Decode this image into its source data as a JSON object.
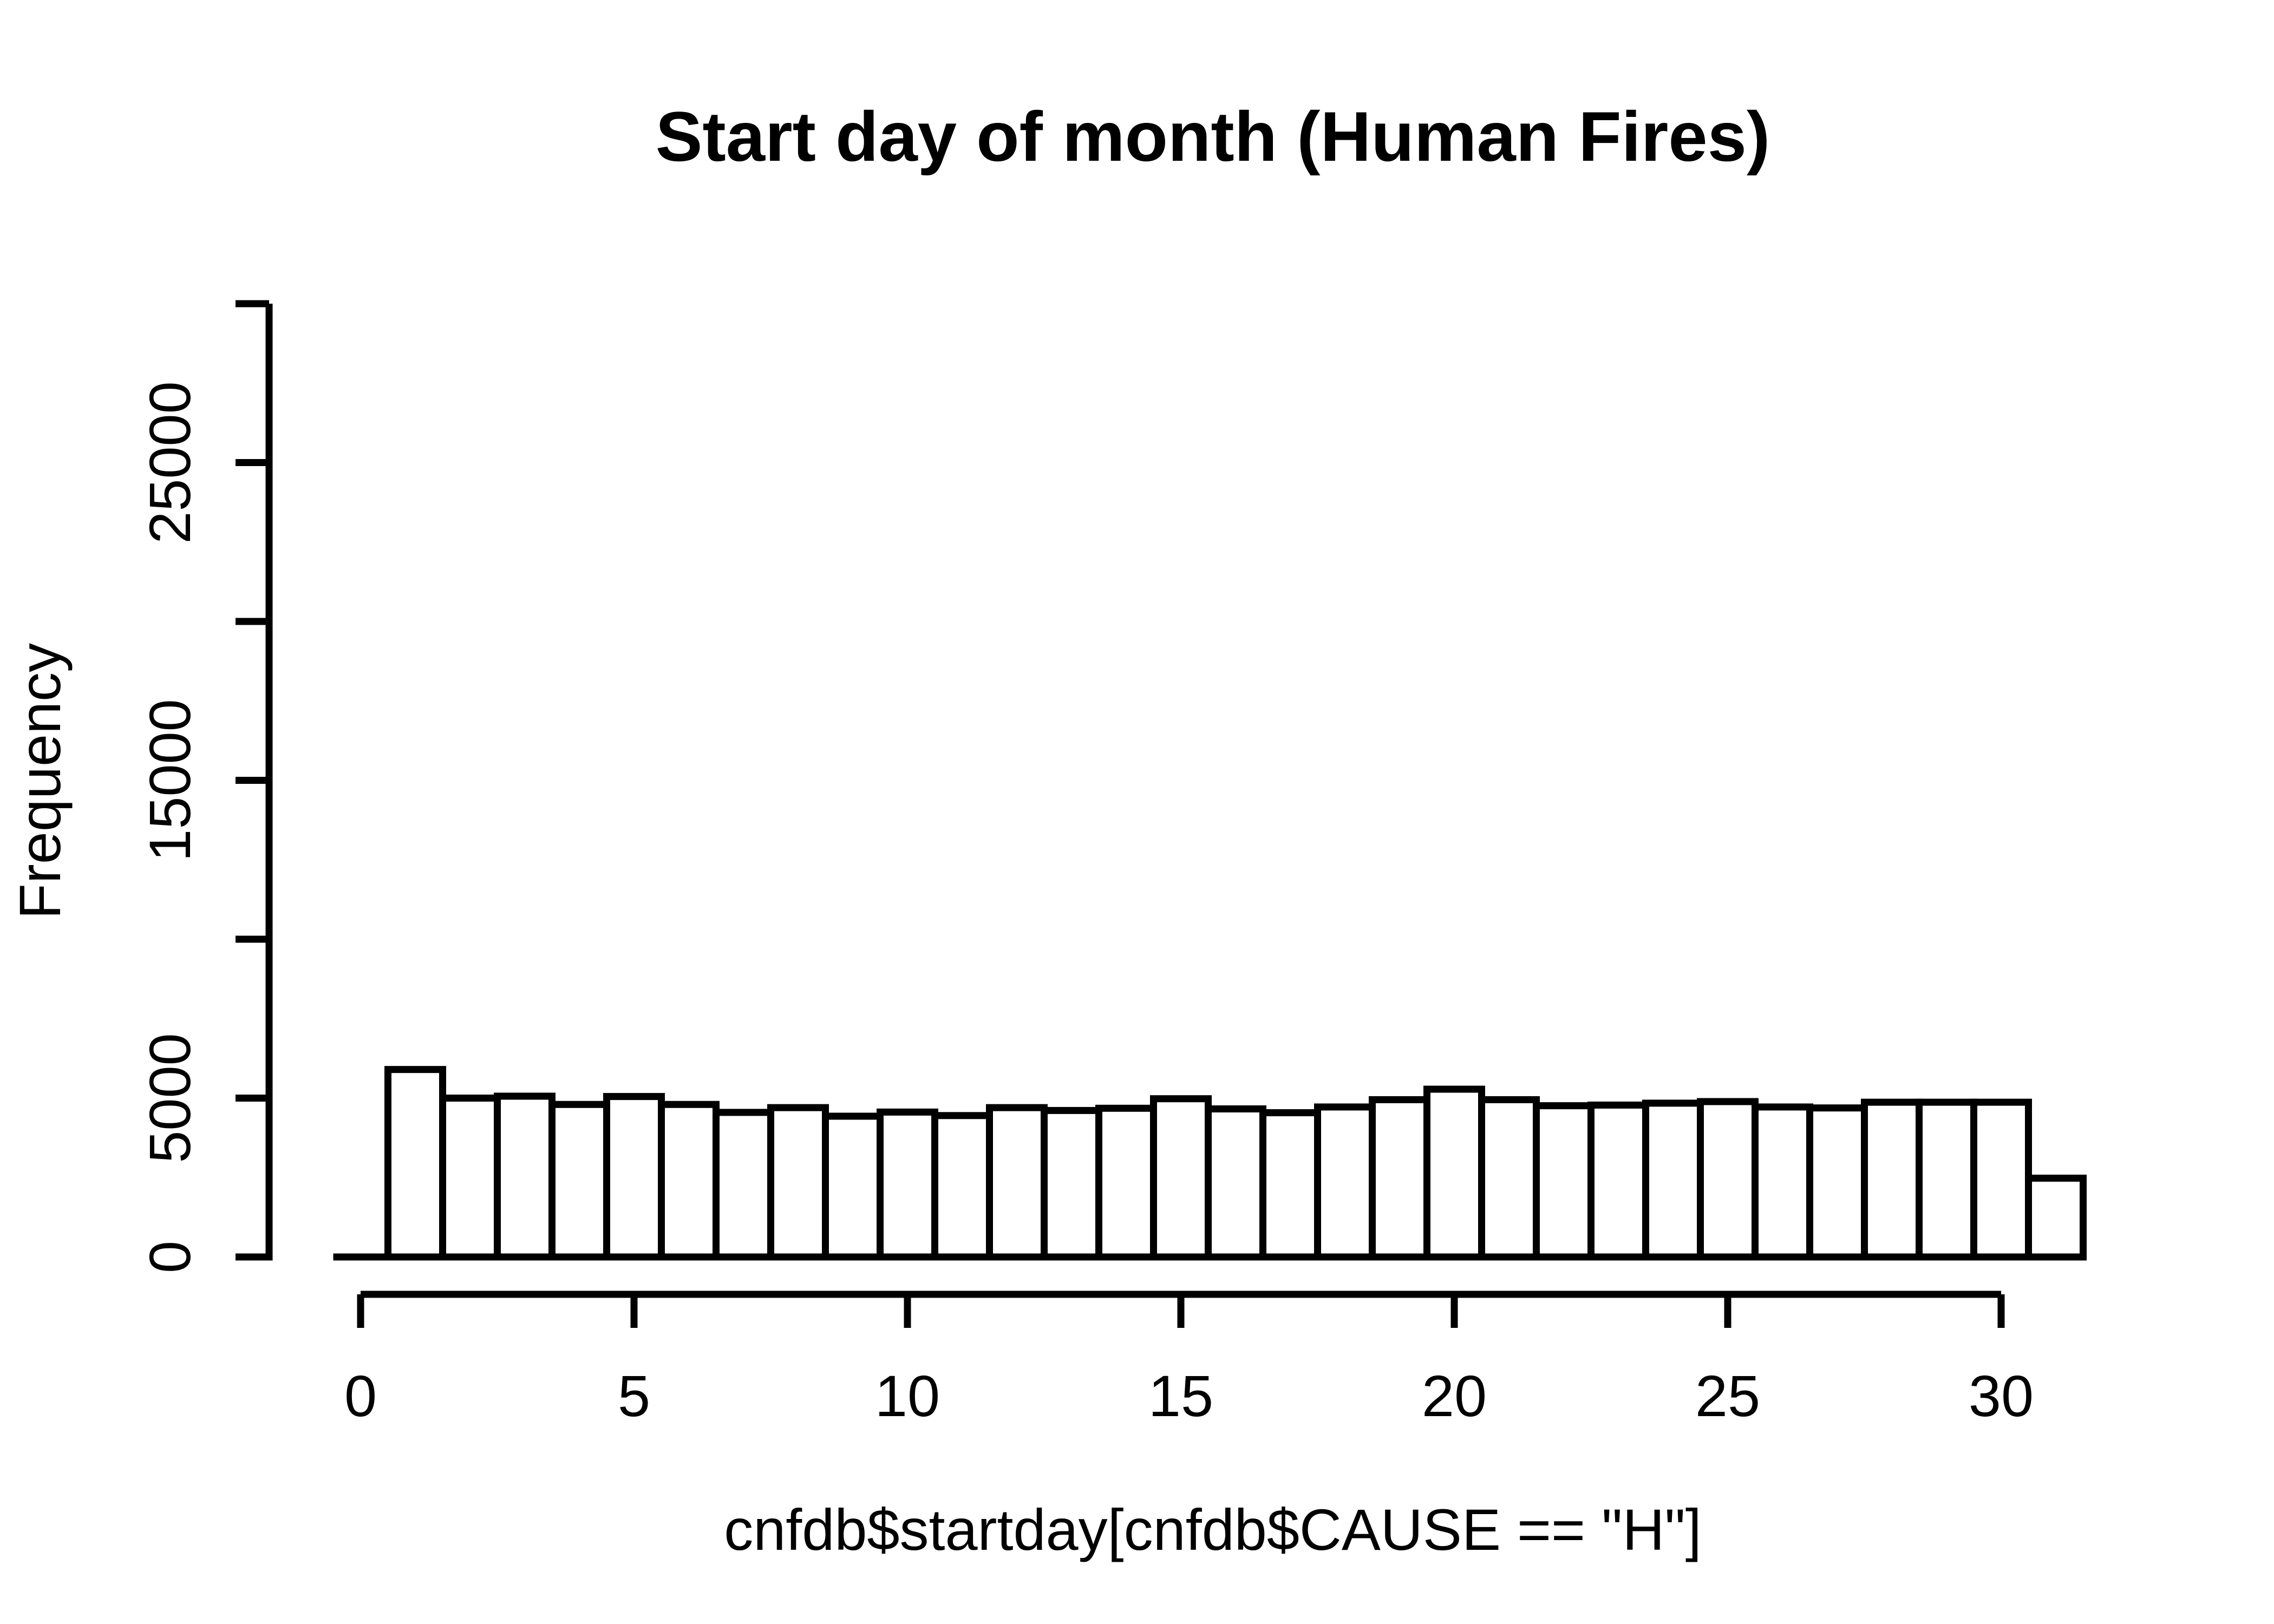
{
  "page": {
    "background_color": "#ffffff",
    "foreground_color": "#000000"
  },
  "chart_data": {
    "type": "bar",
    "chart_kind": "histogram",
    "title": "Start day of month (Human Fires)",
    "xlabel": "cnfdb$startday[cnfdb$CAUSE == \"H\"]",
    "ylabel": "Frequency",
    "categories": [
      1,
      2,
      3,
      4,
      5,
      6,
      7,
      8,
      9,
      10,
      11,
      12,
      13,
      14,
      15,
      16,
      17,
      18,
      19,
      20,
      21,
      22,
      23,
      24,
      25,
      26,
      27,
      28,
      29,
      30,
      31
    ],
    "values": [
      5900,
      5000,
      5060,
      4800,
      5050,
      4800,
      4550,
      4700,
      4430,
      4560,
      4450,
      4700,
      4610,
      4680,
      4980,
      4660,
      4540,
      4720,
      4950,
      5280,
      4950,
      4760,
      4780,
      4840,
      4890,
      4720,
      4690,
      4870,
      4870,
      4870,
      2480
    ],
    "bin_width": 1,
    "xlim": [
      -0.5,
      31.5
    ],
    "ylim": [
      0,
      30000
    ],
    "x_ticks": [
      0,
      5,
      10,
      15,
      20,
      25,
      30
    ],
    "x_tick_labels": [
      "0",
      "5",
      "10",
      "15",
      "20",
      "25",
      "30"
    ],
    "y_ticks": [
      0,
      5000,
      10000,
      15000,
      20000,
      25000,
      30000
    ],
    "y_tick_labels": [
      "0",
      "5000",
      "",
      "15000",
      "",
      "25000",
      ""
    ],
    "grid": false,
    "legend_position": "none",
    "bar_fill": "#ffffff",
    "bar_stroke": "#000000",
    "axis_color": "#000000",
    "text_color": "#000000"
  }
}
